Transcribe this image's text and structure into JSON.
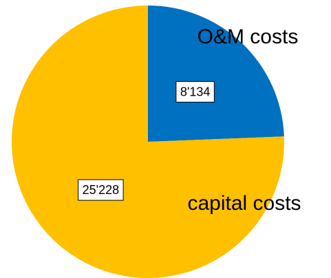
{
  "chart_data": {
    "type": "pie",
    "categories": [
      "O&M costs",
      "capital costs"
    ],
    "values": [
      8134,
      25228
    ],
    "value_labels": [
      "8'134",
      "25'228"
    ],
    "colors": [
      "#0070C0",
      "#FFC000"
    ]
  }
}
